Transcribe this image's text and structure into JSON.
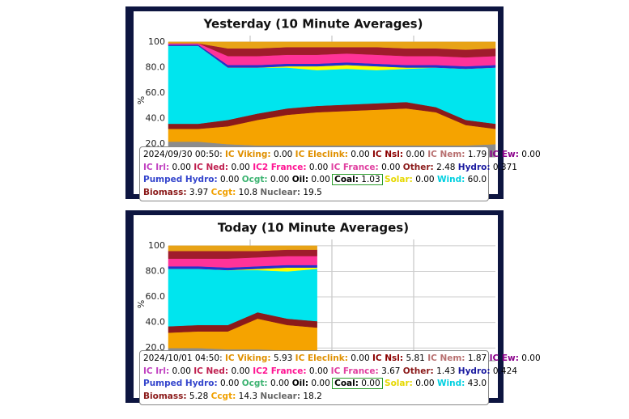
{
  "chart_data": [
    {
      "type": "area",
      "title": "Yesterday (10 Minute Averages)",
      "ylabel": "%",
      "categories": [
        null,
        null,
        null,
        null,
        null,
        null,
        null,
        null,
        null,
        null,
        null,
        null
      ],
      "ylim": [
        10,
        105
      ],
      "yticks": [
        {
          "value": 20,
          "label": "20.0"
        },
        {
          "value": 40,
          "label": "40.0"
        },
        {
          "value": 60,
          "label": "60.0"
        },
        {
          "value": 80,
          "label": "80.0"
        },
        100
      ],
      "series": [
        {
          "color": "#8c8c8c",
          "values": [
            22,
            22,
            20,
            19,
            19,
            19,
            19,
            19,
            19,
            19,
            19,
            20
          ]
        },
        {
          "color": "#f5a300",
          "values": [
            10,
            10,
            14,
            20,
            24,
            26,
            27,
            28,
            29,
            26,
            16,
            12
          ]
        },
        {
          "color": "#8b1a1a",
          "values": [
            4,
            4,
            5,
            5,
            5,
            5,
            5,
            5,
            5,
            4,
            4,
            4
          ]
        },
        {
          "color": "#00e5ee",
          "values": [
            61,
            61,
            41,
            36,
            32,
            28,
            28,
            26,
            26,
            31,
            40,
            44
          ]
        },
        {
          "color": "#ffff00",
          "values": [
            0,
            0,
            0,
            0,
            1,
            3,
            3,
            3,
            1,
            0,
            0,
            0
          ]
        },
        {
          "color": "#2233cc",
          "values": [
            1,
            1,
            2,
            2,
            2,
            2,
            2,
            2,
            2,
            2,
            2,
            2
          ]
        },
        {
          "color": "#ff3399",
          "values": [
            1,
            1,
            7,
            7,
            7,
            7,
            7,
            7,
            7,
            7,
            7,
            7
          ]
        },
        {
          "color": "#a01c2c",
          "values": [
            0,
            0,
            6,
            6,
            6,
            6,
            5,
            6,
            6,
            6,
            6,
            6
          ]
        },
        {
          "color": "#e8a317",
          "values": [
            1,
            1,
            5,
            5,
            4,
            4,
            4,
            4,
            5,
            5,
            6,
            5
          ]
        }
      ],
      "tooltip": {
        "time": "2024/09/30 00:50:",
        "rows": [
          [
            {
              "name": "IC Viking:",
              "value": "0.00",
              "color": "#e09000"
            },
            {
              "name": "IC Eleclink:",
              "value": "0.00",
              "color": "#e09000"
            },
            {
              "name": "IC Nsl:",
              "value": "0.00",
              "color": "#8b0000"
            },
            {
              "name": "IC Nem:",
              "value": "1.79",
              "color": "#b87070"
            },
            {
              "name": "IC Ew:",
              "value": "0.00",
              "color": "#8b008b"
            }
          ],
          [
            {
              "name": "IC Irl:",
              "value": "0.00",
              "color": "#c040c0"
            },
            {
              "name": "IC Ned:",
              "value": "0.00",
              "color": "#c02050"
            },
            {
              "name": "IC2 France:",
              "value": "0.00",
              "color": "#ff1493"
            },
            {
              "name": "IC France:",
              "value": "0.00",
              "color": "#e040a0"
            },
            {
              "name": "Other:",
              "value": "2.48",
              "color": "#8b1a1a"
            },
            {
              "name": "Hydro:",
              "value": "0.371",
              "color": "#1a1aa0"
            }
          ],
          [
            {
              "name": "Pumped Hydro:",
              "value": "0.00",
              "color": "#3344cc"
            },
            {
              "name": "Ocgt:",
              "value": "0.00",
              "color": "#3cb371"
            },
            {
              "name": "Oil:",
              "value": "0.00",
              "color": "#000000"
            },
            {
              "name": "Coal:",
              "value": "1.03",
              "color": "#000000",
              "boxed": true
            },
            {
              "name": "Solar:",
              "value": "0.00",
              "color": "#e6d800"
            },
            {
              "name": "Wind:",
              "value": "60.0",
              "color": "#00d0e0"
            }
          ],
          [
            {
              "name": "Biomass:",
              "value": "3.97",
              "color": "#8b1a1a"
            },
            {
              "name": "Ccgt:",
              "value": "10.8",
              "color": "#f0a000"
            },
            {
              "name": "Nuclear:",
              "value": "19.5",
              "color": "#666666"
            }
          ]
        ]
      }
    },
    {
      "type": "area",
      "title": "Today (10 Minute Averages)",
      "ylabel": "%",
      "categories": [
        null,
        null,
        null,
        null,
        null,
        null,
        null,
        null,
        null,
        null,
        null,
        null
      ],
      "ylim": [
        10,
        105
      ],
      "yticks": [
        {
          "value": 20,
          "label": "20.0"
        },
        {
          "value": 40,
          "label": "40.0"
        },
        {
          "value": 60,
          "label": "60.0"
        },
        {
          "value": 80,
          "label": "80.0"
        },
        100
      ],
      "series": [
        {
          "color": "#8c8c8c",
          "values": [
            20,
            20,
            19,
            19,
            18,
            18,
            null,
            null,
            null,
            null,
            null,
            null
          ]
        },
        {
          "color": "#f5a300",
          "values": [
            12,
            13,
            14,
            24,
            20,
            18,
            null,
            null,
            null,
            null,
            null,
            null
          ]
        },
        {
          "color": "#8b1a1a",
          "values": [
            5,
            5,
            5,
            5,
            5,
            5,
            null,
            null,
            null,
            null,
            null,
            null
          ]
        },
        {
          "color": "#00e5ee",
          "values": [
            45,
            44,
            43,
            33,
            37,
            41,
            null,
            null,
            null,
            null,
            null,
            null
          ]
        },
        {
          "color": "#ffff00",
          "values": [
            0,
            0,
            0,
            1,
            3,
            1,
            null,
            null,
            null,
            null,
            null,
            null
          ]
        },
        {
          "color": "#2233cc",
          "values": [
            2,
            2,
            2,
            2,
            2,
            2,
            null,
            null,
            null,
            null,
            null,
            null
          ]
        },
        {
          "color": "#ff3399",
          "values": [
            6,
            6,
            7,
            7,
            7,
            7,
            null,
            null,
            null,
            null,
            null,
            null
          ]
        },
        {
          "color": "#a01c2c",
          "values": [
            6,
            6,
            6,
            5,
            5,
            5,
            null,
            null,
            null,
            null,
            null,
            null
          ]
        },
        {
          "color": "#e8a317",
          "values": [
            4,
            4,
            4,
            4,
            3,
            3,
            null,
            null,
            null,
            null,
            null,
            null
          ]
        }
      ],
      "tooltip": {
        "time": "2024/10/01 04:50:",
        "rows": [
          [
            {
              "name": "IC Viking:",
              "value": "5.93",
              "color": "#e09000"
            },
            {
              "name": "IC Eleclink:",
              "value": "0.00",
              "color": "#e09000"
            },
            {
              "name": "IC Nsl:",
              "value": "5.81",
              "color": "#8b0000"
            },
            {
              "name": "IC Nem:",
              "value": "1.87",
              "color": "#b87070"
            },
            {
              "name": "IC Ew:",
              "value": "0.00",
              "color": "#8b008b"
            }
          ],
          [
            {
              "name": "IC Irl:",
              "value": "0.00",
              "color": "#c040c0"
            },
            {
              "name": "IC Ned:",
              "value": "0.00",
              "color": "#c02050"
            },
            {
              "name": "IC2 France:",
              "value": "0.00",
              "color": "#ff1493"
            },
            {
              "name": "IC France:",
              "value": "3.67",
              "color": "#e040a0"
            },
            {
              "name": "Other:",
              "value": "1.43",
              "color": "#8b1a1a"
            },
            {
              "name": "Hydro:",
              "value": "0.424",
              "color": "#1a1aa0"
            }
          ],
          [
            {
              "name": "Pumped Hydro:",
              "value": "0.00",
              "color": "#3344cc"
            },
            {
              "name": "Ocgt:",
              "value": "0.00",
              "color": "#3cb371"
            },
            {
              "name": "Oil:",
              "value": "0.00",
              "color": "#000000"
            },
            {
              "name": "Coal:",
              "value": "0.00",
              "color": "#000000",
              "boxed": true
            },
            {
              "name": "Solar:",
              "value": "0.00",
              "color": "#e6d800"
            },
            {
              "name": "Wind:",
              "value": "43.0",
              "color": "#00d0e0"
            }
          ],
          [
            {
              "name": "Biomass:",
              "value": "5.28",
              "color": "#8b1a1a"
            },
            {
              "name": "Ccgt:",
              "value": "14.3",
              "color": "#f0a000"
            },
            {
              "name": "Nuclear:",
              "value": "18.2",
              "color": "#666666"
            }
          ]
        ]
      }
    }
  ]
}
